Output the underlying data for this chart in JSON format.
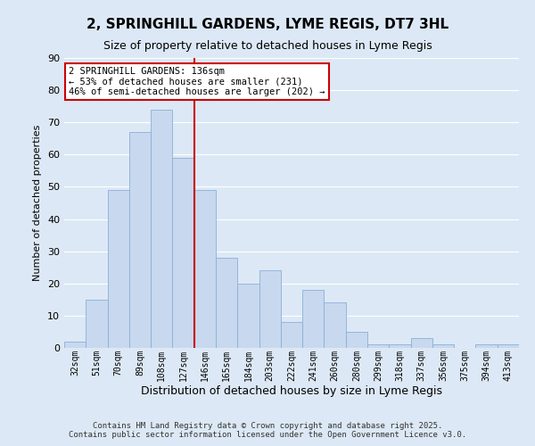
{
  "title": "2, SPRINGHILL GARDENS, LYME REGIS, DT7 3HL",
  "subtitle": "Size of property relative to detached houses in Lyme Regis",
  "xlabel": "Distribution of detached houses by size in Lyme Regis",
  "ylabel": "Number of detached properties",
  "categories": [
    "32sqm",
    "51sqm",
    "70sqm",
    "89sqm",
    "108sqm",
    "127sqm",
    "146sqm",
    "165sqm",
    "184sqm",
    "203sqm",
    "222sqm",
    "241sqm",
    "260sqm",
    "280sqm",
    "299sqm",
    "318sqm",
    "337sqm",
    "356sqm",
    "375sqm",
    "394sqm",
    "413sqm"
  ],
  "values": [
    2,
    15,
    49,
    67,
    74,
    59,
    49,
    28,
    20,
    24,
    8,
    18,
    14,
    5,
    1,
    1,
    3,
    1,
    0,
    1,
    1
  ],
  "bar_color": "#c8d8ee",
  "bar_edge_color": "#8ab0d8",
  "ylim": [
    0,
    90
  ],
  "yticks": [
    0,
    10,
    20,
    30,
    40,
    50,
    60,
    70,
    80,
    90
  ],
  "vline_index": 5,
  "vline_color": "#cc0000",
  "annotation_title": "2 SPRINGHILL GARDENS: 136sqm",
  "annotation_line1": "← 53% of detached houses are smaller (231)",
  "annotation_line2": "46% of semi-detached houses are larger (202) →",
  "annotation_box_facecolor": "#ffffff",
  "annotation_box_edgecolor": "#cc0000",
  "background_color": "#dce8f5",
  "grid_color": "#ffffff",
  "footnote1": "Contains HM Land Registry data © Crown copyright and database right 2025.",
  "footnote2": "Contains public sector information licensed under the Open Government Licence v3.0."
}
